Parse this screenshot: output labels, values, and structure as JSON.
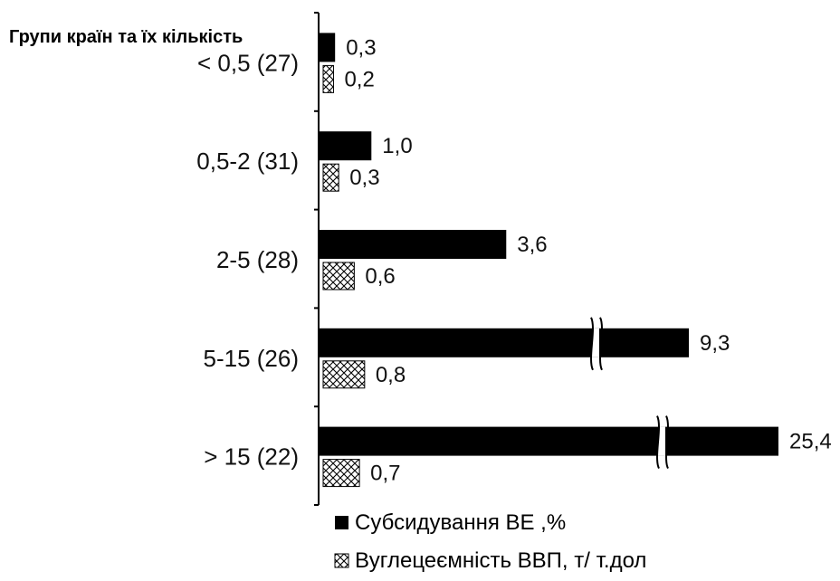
{
  "chart_data": {
    "type": "bar",
    "orientation": "horizontal",
    "header": "Групи країн та їх кількість",
    "categories": [
      "< 0,5 (27)",
      "0,5-2 (31)",
      "2-5 (28)",
      "5-15 (26)",
      "> 15 (22)"
    ],
    "series": [
      {
        "name": "Субсидування ВЕ ,%",
        "values": [
          0.3,
          1.0,
          3.6,
          9.3,
          25.4
        ],
        "value_labels": [
          "0,3",
          "1,0",
          "3,6",
          "9,3",
          "25,4"
        ],
        "color": "#000000",
        "pattern": "solid"
      },
      {
        "name": "Вуглецеємність ВВП, т/ т.дол",
        "values": [
          0.2,
          0.3,
          0.6,
          0.8,
          0.7
        ],
        "value_labels": [
          "0,2",
          "0,3",
          "0,6",
          "0,8",
          "0,7"
        ],
        "color": "#000000",
        "pattern": "crosshatch"
      }
    ],
    "axis_breaks": [
      "9,3",
      "25,4"
    ],
    "legend_position": "bottom",
    "grid": false
  }
}
